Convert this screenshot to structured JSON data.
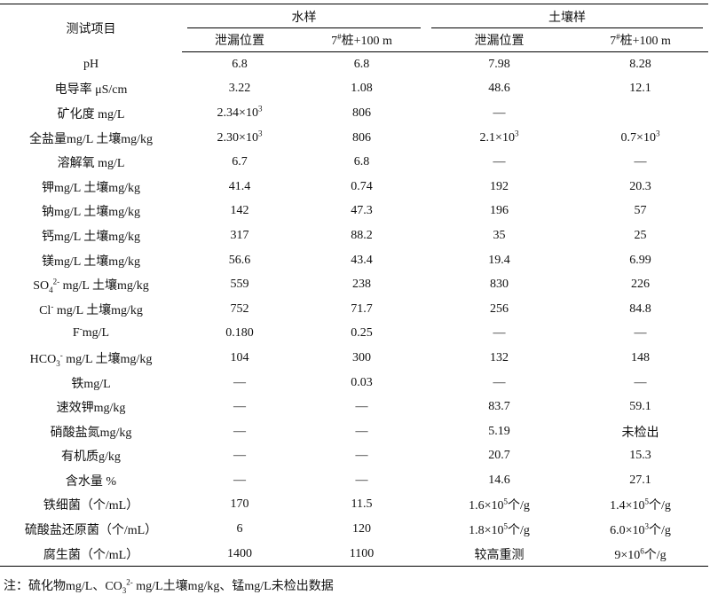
{
  "table": {
    "header": {
      "item": "测试项目",
      "groups": [
        "水样",
        "土壤样"
      ],
      "columns": [
        "泄漏位置",
        [
          "7",
          {
            "sup": "#"
          },
          "桩+100 m"
        ],
        "泄漏位置",
        [
          "7",
          {
            "sup": "#"
          },
          "桩+100 m"
        ]
      ]
    },
    "rows": [
      [
        "pH",
        "6.8",
        "6.8",
        "7.98",
        "8.28"
      ],
      [
        "电导率  μS/cm",
        "3.22",
        "1.08",
        "48.6",
        "12.1"
      ],
      [
        "矿化度 mg/L",
        [
          "2.34×10",
          {
            "sup": "3"
          }
        ],
        "806",
        "—",
        null
      ],
      [
        "全盐量mg/L 土壤mg/kg",
        [
          "2.30×10",
          {
            "sup": "3"
          }
        ],
        "806",
        [
          "2.1×10",
          {
            "sup": "3"
          }
        ],
        [
          "0.7×10",
          {
            "sup": "3"
          }
        ]
      ],
      [
        "溶解氧 mg/L",
        "6.7",
        "6.8",
        "—",
        "—"
      ],
      [
        "钾mg/L 土壤mg/kg",
        "41.4",
        "0.74",
        "192",
        "20.3"
      ],
      [
        "钠mg/L 土壤mg/kg",
        "142",
        "47.3",
        "196",
        "57"
      ],
      [
        "钙mg/L 土壤mg/kg",
        "317",
        "88.2",
        "35",
        "25"
      ],
      [
        "镁mg/L 土壤mg/kg",
        "56.6",
        "43.4",
        "19.4",
        "6.99"
      ],
      [
        [
          "SO",
          {
            "sub": "4"
          },
          {
            "sup": "2-"
          },
          " mg/L 土壤mg/kg"
        ],
        "559",
        "238",
        "830",
        "226"
      ],
      [
        [
          "Cl",
          {
            "sup": "-"
          },
          " mg/L 土壤mg/kg"
        ],
        "752",
        "71.7",
        "256",
        "84.8"
      ],
      [
        [
          "F",
          {
            "sup": "-"
          },
          "mg/L"
        ],
        "0.180",
        "0.25",
        "—",
        "—"
      ],
      [
        [
          "HCO",
          {
            "sub": "3"
          },
          {
            "sup": "-"
          },
          " mg/L 土壤mg/kg"
        ],
        "104",
        "300",
        "132",
        "148"
      ],
      [
        "铁mg/L",
        "—",
        "0.03",
        "—",
        "—"
      ],
      [
        "速效钾mg/kg",
        "—",
        "—",
        "83.7",
        "59.1"
      ],
      [
        "硝酸盐氮mg/kg",
        "—",
        "—",
        "5.19",
        "未检出"
      ],
      [
        "有机质g/kg",
        "—",
        "—",
        "20.7",
        "15.3"
      ],
      [
        "含水量 %",
        "—",
        "—",
        "14.6",
        "27.1"
      ],
      [
        "铁细菌（个/mL）",
        "170",
        "11.5",
        [
          "1.6×10",
          {
            "sup": "5"
          },
          "个/g"
        ],
        [
          "1.4×10",
          {
            "sup": "5"
          },
          "个/g"
        ]
      ],
      [
        "硫酸盐还原菌（个/mL）",
        "6",
        "120",
        [
          "1.8×10",
          {
            "sup": "5"
          },
          "个/g"
        ],
        [
          "6.0×10",
          {
            "sup": "3"
          },
          "个/g"
        ]
      ],
      [
        "腐生菌（个/mL）",
        "1400",
        "1100",
        "较高重测",
        [
          "9×10",
          {
            "sup": "6"
          },
          "个/g"
        ]
      ]
    ],
    "note": [
      "注：硫化物mg/L、CO",
      {
        "sub": "3"
      },
      {
        "sup": "2-"
      },
      " mg/L土壤mg/kg、锰mg/L未检出数据"
    ]
  }
}
